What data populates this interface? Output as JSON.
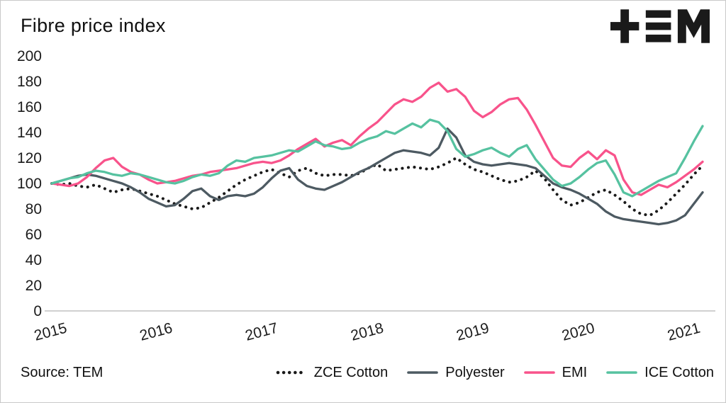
{
  "header": {
    "title": "Fibre price index",
    "logo_name": "TEM"
  },
  "source": "Source: TEM",
  "colors": {
    "zce_cotton": "#1a1a1a",
    "polyester": "#4d5a62",
    "emi": "#f8538b",
    "ice_cotton": "#56c2a0",
    "axis_line": "#c0c0c0",
    "text": "#1b1b1b"
  },
  "chart_data": {
    "type": "line",
    "title": "Fibre price index",
    "xlabel": "",
    "ylabel": "",
    "ylim": [
      0,
      200
    ],
    "y_ticks": [
      0,
      20,
      40,
      60,
      80,
      100,
      120,
      140,
      160,
      180,
      200
    ],
    "x_tick_labels": [
      "2015",
      "2016",
      "2017",
      "2018",
      "2019",
      "2020",
      "2021"
    ],
    "x_tick_indices": [
      0,
      12,
      24,
      36,
      48,
      60,
      72
    ],
    "x_unit": "monthly, Jan 2015 - Mar 2021",
    "grid": false,
    "legend_position": "bottom",
    "series": [
      {
        "name": "ZCE Cotton",
        "color": "#1a1a1a",
        "dotted": true,
        "values": [
          100,
          99,
          100,
          98,
          97,
          99,
          96,
          93,
          95,
          96,
          94,
          92,
          90,
          87,
          84,
          82,
          80,
          81,
          85,
          89,
          94,
          99,
          103,
          106,
          109,
          111,
          108,
          105,
          110,
          112,
          108,
          106,
          107,
          107,
          106,
          108,
          112,
          115,
          110,
          111,
          112,
          113,
          112,
          111,
          113,
          116,
          120,
          115,
          111,
          109,
          106,
          103,
          101,
          102,
          105,
          110,
          104,
          95,
          87,
          83,
          85,
          89,
          93,
          95,
          91,
          86,
          80,
          76,
          75,
          79,
          85,
          92,
          99,
          107,
          114
        ]
      },
      {
        "name": "Polyester",
        "color": "#4d5a62",
        "dotted": false,
        "values": [
          100,
          102,
          104,
          106,
          107,
          106,
          104,
          102,
          100,
          97,
          93,
          88,
          85,
          82,
          83,
          88,
          94,
          96,
          90,
          87,
          90,
          91,
          90,
          92,
          97,
          104,
          110,
          112,
          103,
          98,
          96,
          95,
          98,
          101,
          105,
          109,
          112,
          116,
          120,
          124,
          126,
          125,
          124,
          122,
          128,
          143,
          136,
          122,
          117,
          115,
          114,
          115,
          116,
          115,
          114,
          112,
          106,
          100,
          97,
          95,
          92,
          88,
          84,
          78,
          74,
          72,
          71,
          70,
          69,
          68,
          69,
          71,
          75,
          84,
          93
        ]
      },
      {
        "name": "EMI",
        "color": "#f8538b",
        "dotted": false,
        "values": [
          100,
          99,
          98,
          100,
          105,
          112,
          118,
          120,
          113,
          109,
          107,
          103,
          100,
          101,
          102,
          104,
          106,
          107,
          109,
          110,
          111,
          112,
          114,
          116,
          117,
          116,
          118,
          122,
          127,
          131,
          135,
          129,
          132,
          134,
          130,
          137,
          143,
          148,
          155,
          162,
          166,
          164,
          168,
          175,
          179,
          172,
          174,
          168,
          157,
          152,
          156,
          162,
          166,
          167,
          158,
          146,
          133,
          120,
          114,
          113,
          120,
          125,
          119,
          126,
          122,
          103,
          93,
          91,
          95,
          99,
          97,
          101,
          106,
          111,
          117
        ]
      },
      {
        "name": "ICE Cotton",
        "color": "#56c2a0",
        "dotted": false,
        "values": [
          100,
          102,
          104,
          105,
          108,
          110,
          109,
          107,
          106,
          108,
          107,
          105,
          103,
          101,
          100,
          102,
          105,
          107,
          106,
          108,
          114,
          118,
          117,
          120,
          121,
          122,
          124,
          126,
          125,
          129,
          133,
          130,
          129,
          127,
          128,
          132,
          135,
          137,
          141,
          139,
          143,
          147,
          144,
          150,
          148,
          141,
          127,
          121,
          123,
          126,
          128,
          124,
          121,
          127,
          130,
          119,
          111,
          103,
          98,
          100,
          105,
          111,
          116,
          118,
          107,
          93,
          90,
          94,
          98,
          102,
          105,
          108,
          120,
          133,
          145
        ]
      }
    ]
  }
}
